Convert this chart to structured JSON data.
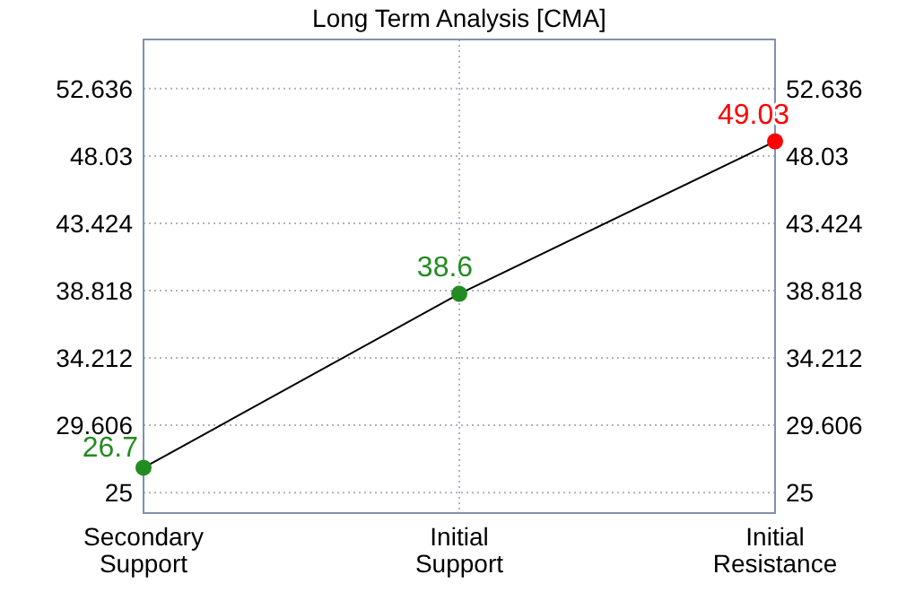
{
  "chart_data": {
    "type": "line",
    "title": "Long Term Analysis [CMA]",
    "categories": [
      "Secondary Support",
      "Initial Support",
      "Initial Resistance"
    ],
    "series": [
      {
        "color": "#000000",
        "colors": [
          "#228b22",
          "#228b22",
          "#ff0000"
        ],
        "values": [
          26.7,
          38.6,
          49.03
        ]
      }
    ],
    "ylim": [
      23.6,
      56
    ],
    "yticks": [
      25,
      29.606,
      34.212,
      38.818,
      43.424,
      48.03,
      52.636
    ],
    "y2lim": [
      23.6,
      56
    ],
    "y2ticks": [
      25,
      29.606,
      34.212,
      38.818,
      43.424,
      48.03,
      52.636
    ],
    "grid": true,
    "marker": "circle",
    "data_labels": true
  }
}
